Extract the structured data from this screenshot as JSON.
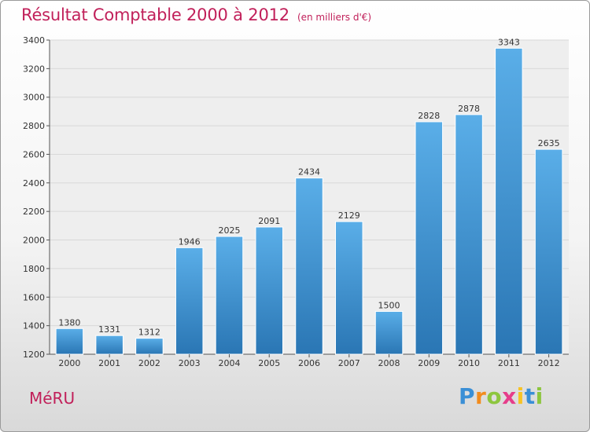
{
  "title": "Résultat Comptable 2000 à 2012",
  "subtitle": "(en milliers d'€)",
  "place": "MéRU",
  "logo": {
    "text": "Proxiti",
    "letters": [
      {
        "char": "P",
        "color": "#3a8fd6"
      },
      {
        "char": "r",
        "color": "#f28c1e"
      },
      {
        "char": "o",
        "color": "#8dc63f"
      },
      {
        "char": "x",
        "color": "#e63d8a"
      },
      {
        "char": "i",
        "color": "#f7c325"
      },
      {
        "char": "t",
        "color": "#3a8fd6"
      },
      {
        "char": "i",
        "color": "#8dc63f"
      }
    ]
  },
  "colors": {
    "title": "#c1205a",
    "bar_light": "#5aaee8",
    "bar_dark": "#2a76b4",
    "grid": "#d8d8d8",
    "axis": "#555555"
  },
  "chart_data": {
    "type": "bar",
    "title": "Résultat Comptable 2000 à 2012",
    "subtitle": "(en milliers d'€)",
    "xlabel": "",
    "ylabel": "",
    "categories": [
      "2000",
      "2001",
      "2002",
      "2003",
      "2004",
      "2005",
      "2006",
      "2007",
      "2008",
      "2009",
      "2010",
      "2011",
      "2012"
    ],
    "values": [
      1380,
      1331,
      1312,
      1946,
      2025,
      2091,
      2434,
      2129,
      1500,
      2828,
      2878,
      3343,
      2635
    ],
    "ylim": [
      1200,
      3400
    ],
    "yticks": [
      1200,
      1400,
      1600,
      1800,
      2000,
      2200,
      2400,
      2600,
      2800,
      3000,
      3200,
      3400
    ],
    "grid": true,
    "data_labels": true
  }
}
